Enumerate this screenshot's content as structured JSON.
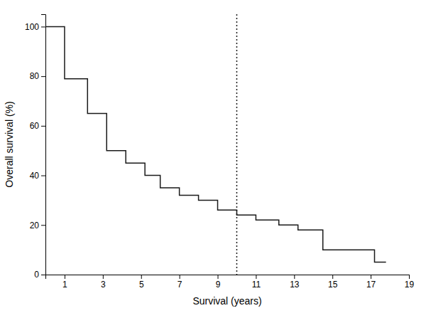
{
  "chart_data": {
    "type": "step",
    "xlabel": "Survival (years)",
    "ylabel": "Overall survival (%)",
    "x": [
      0,
      0.7,
      1.0,
      1.8,
      2.2,
      2.8,
      3.2,
      3.8,
      4.2,
      4.8,
      5.2,
      5.7,
      6.0,
      6.5,
      7.0,
      7.5,
      8.0,
      8.5,
      9.0,
      9.5,
      10.0,
      10.5,
      11.0,
      11.7,
      12.2,
      12.8,
      13.2,
      14.0,
      14.5,
      15.2,
      16.5,
      17.2,
      17.8
    ],
    "values": [
      100,
      100,
      79,
      79,
      65,
      65,
      50,
      50,
      45,
      45,
      40,
      40,
      35,
      35,
      32,
      32,
      30,
      30,
      26,
      26,
      24,
      24,
      22,
      22,
      20,
      20,
      18,
      18,
      10,
      10,
      10,
      5,
      5
    ],
    "color": "#1a1a1a",
    "xlim": [
      0,
      19
    ],
    "ylim": [
      0,
      105
    ],
    "xticks": [
      1,
      3,
      5,
      7,
      9,
      11,
      13,
      15,
      17,
      19
    ],
    "yticks": [
      0,
      20,
      40,
      60,
      80,
      100
    ],
    "vertical_lines": [
      {
        "x": 10.0,
        "line_style": "dotted"
      }
    ],
    "grid": false
  }
}
